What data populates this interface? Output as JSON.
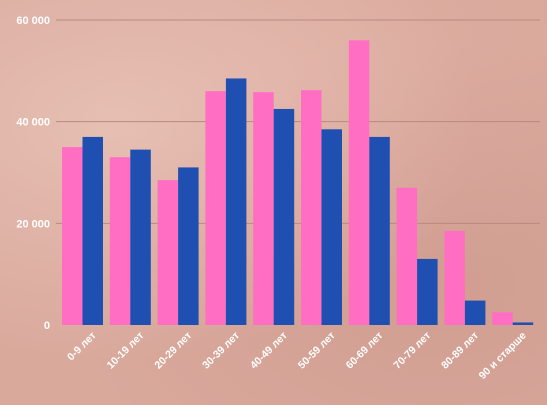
{
  "chart_data": {
    "type": "bar",
    "categories": [
      "0-9 лет",
      "10-19 лет",
      "20-29 лет",
      "30-39 лет",
      "40-49 лет",
      "50-59 лет",
      "60-69 лет",
      "70-79 лет",
      "80-89 лет",
      "90 и старше"
    ],
    "series": [
      {
        "values": [
          35000,
          33000,
          28500,
          46000,
          45800,
          46200,
          56000,
          27000,
          18500,
          2500
        ]
      },
      {
        "values": [
          37000,
          34500,
          31000,
          48500,
          42500,
          38500,
          37000,
          13000,
          4800,
          500
        ]
      }
    ],
    "ylim": [
      0,
      60000
    ],
    "yticks": [
      0,
      20000,
      40000,
      60000
    ],
    "ytick_labels": [
      "0",
      "20 000",
      "40 000",
      "60 000"
    ],
    "grid": true,
    "colors": [
      "#ff6ec3",
      "#1f4fb0"
    ]
  }
}
